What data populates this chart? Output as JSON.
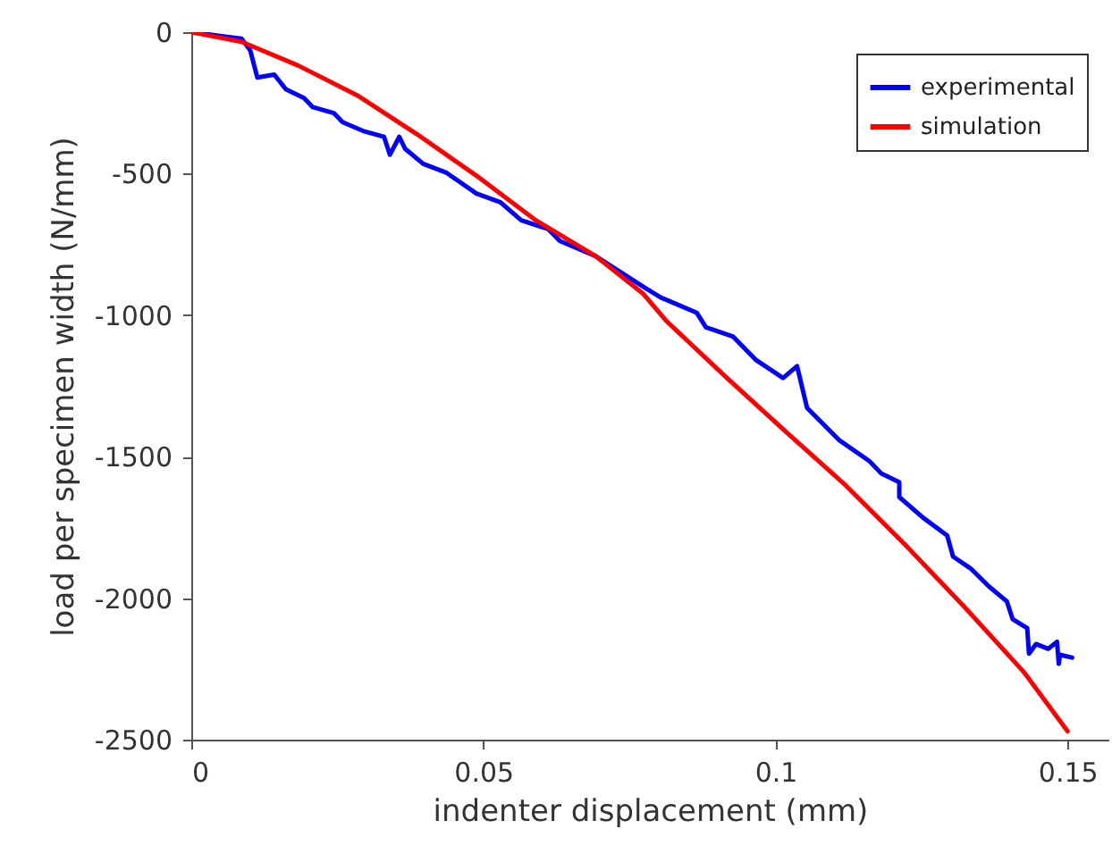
{
  "chart_data": {
    "type": "line",
    "xlabel": "indenter displacement (mm)",
    "ylabel": "load per specimen width (N/mm)",
    "xlim": [
      0,
      0.157
    ],
    "ylim": [
      -2500,
      0
    ],
    "xticks": [
      0,
      0.05,
      0.1,
      0.15
    ],
    "yticks": [
      -2500,
      -2000,
      -1500,
      -1000,
      -500,
      0
    ],
    "grid": false,
    "legend": "top right",
    "line_style": "solid",
    "marker": "none",
    "series": [
      {
        "name": "experimental",
        "color": "#0000ff",
        "x": [
          0,
          0.0086,
          0.0101,
          0.0113,
          0.0142,
          0.0162,
          0.0193,
          0.0208,
          0.0244,
          0.0259,
          0.0294,
          0.033,
          0.034,
          0.0356,
          0.0366,
          0.0397,
          0.0437,
          0.0488,
          0.0529,
          0.0565,
          0.0611,
          0.0631,
          0.0692,
          0.0774,
          0.0804,
          0.0865,
          0.0881,
          0.0927,
          0.0967,
          0.1013,
          0.1037,
          0.1054,
          0.111,
          0.1161,
          0.1181,
          0.1212,
          0.1212,
          0.1253,
          0.1294,
          0.1304,
          0.1334,
          0.1365,
          0.1396,
          0.1406,
          0.1431,
          0.1434,
          0.1446,
          0.1467,
          0.1482,
          0.1485,
          0.1487,
          0.1508
        ],
        "values": [
          0,
          -23,
          -65,
          -160,
          -150,
          -202,
          -233,
          -265,
          -286,
          -318,
          -349,
          -370,
          -433,
          -370,
          -412,
          -465,
          -497,
          -570,
          -601,
          -665,
          -696,
          -738,
          -791,
          -900,
          -938,
          -991,
          -1043,
          -1075,
          -1159,
          -1222,
          -1180,
          -1327,
          -1443,
          -1516,
          -1559,
          -1590,
          -1643,
          -1716,
          -1779,
          -1853,
          -1895,
          -1958,
          -2011,
          -2074,
          -2106,
          -2196,
          -2162,
          -2179,
          -2154,
          -2232,
          -2200,
          -2210
        ]
      },
      {
        "name": "simulation",
        "color": "#ff0000",
        "x": [
          0,
          0.0086,
          0.0183,
          0.0284,
          0.0386,
          0.0488,
          0.059,
          0.0692,
          0.0774,
          0.0814,
          0.0917,
          0.1018,
          0.112,
          0.1222,
          0.1324,
          0.1426,
          0.15
        ],
        "values": [
          0,
          -34,
          -118,
          -223,
          -360,
          -507,
          -665,
          -791,
          -925,
          -1022,
          -1222,
          -1412,
          -1601,
          -1811,
          -2032,
          -2263,
          -2470
        ]
      }
    ]
  }
}
